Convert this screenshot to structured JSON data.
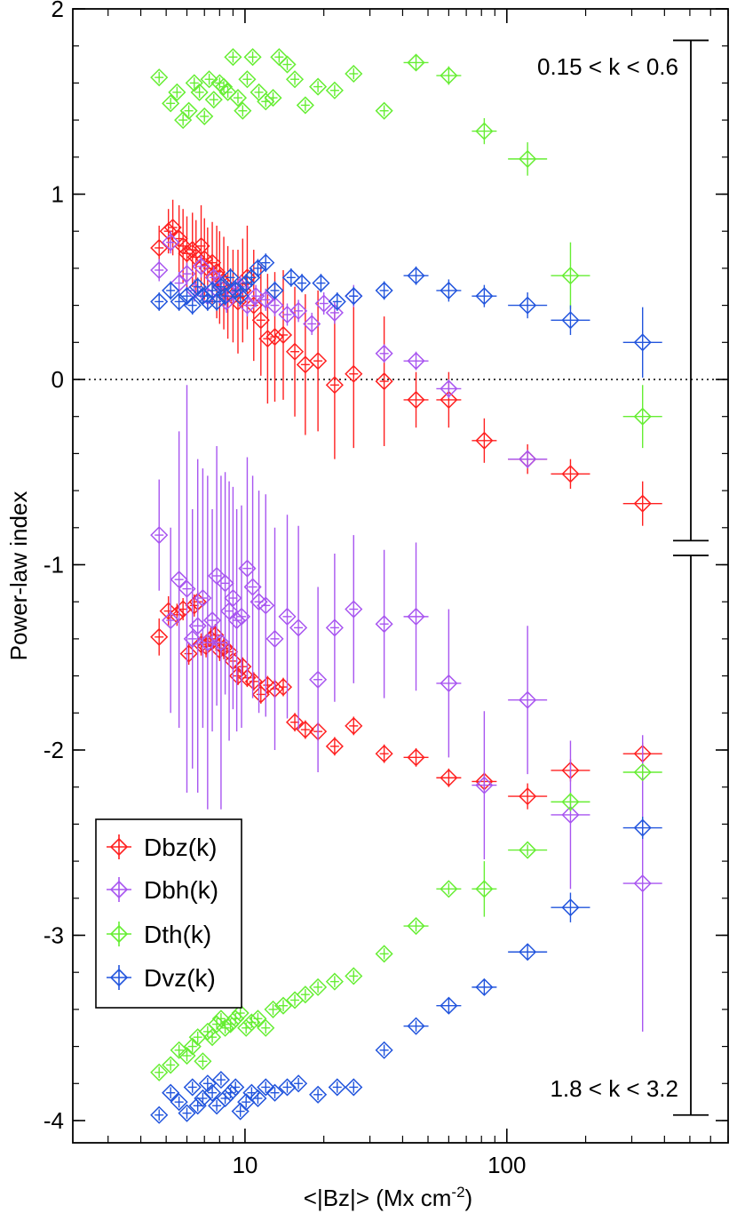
{
  "chart_data": {
    "type": "scatter",
    "title": "",
    "xlabel": "<|Bz|> (Mx cm",
    "xlabel_superscript": "-2",
    "xlabel_close": ")",
    "ylabel": "Power-law index",
    "xscale": "log",
    "xlim": [
      2.2,
      700
    ],
    "ylim": [
      -4.12,
      2.0
    ],
    "y_ticks": [
      {
        "value": 2,
        "label": "2"
      },
      {
        "value": 1,
        "label": "1"
      },
      {
        "value": 0,
        "label": "0"
      },
      {
        "value": -1,
        "label": "-1"
      },
      {
        "value": -2,
        "label": "-2"
      },
      {
        "value": -3,
        "label": "-3"
      },
      {
        "value": -4,
        "label": "-4"
      }
    ],
    "x_ticks": [
      {
        "value": 10,
        "label": "10"
      },
      {
        "value": 100,
        "label": "100"
      }
    ],
    "reference_line": {
      "y": 0,
      "style": "dotted"
    },
    "range_annotations": [
      {
        "label": "0.15 < k < 0.6",
        "y_top": 1.83,
        "y_bottom": -0.87,
        "position": "top-right"
      },
      {
        "label": "1.8 < k < 3.2",
        "y_top": -0.95,
        "y_bottom": -3.97,
        "position": "bottom-right"
      }
    ],
    "legend": {
      "position": "lower-left"
    },
    "series": [
      {
        "name": "Dbz(k)",
        "color": "#ff2020",
        "groups": [
          {
            "range": "low-k",
            "x": [
              4.7,
              5.1,
              5.3,
              5.6,
              5.8,
              6.0,
              6.3,
              6.5,
              6.8,
              7.0,
              7.2,
              7.5,
              7.8,
              8.0,
              8.3,
              8.6,
              9.0,
              9.4,
              9.8,
              10.2,
              10.8,
              11.5,
              12.2,
              13.0,
              14.0,
              15.5,
              17.0,
              19.0,
              22.0,
              26.0,
              34.0,
              45.0,
              60.0,
              82.0,
              120.0,
              175.0,
              330.0
            ],
            "y": [
              0.71,
              0.8,
              0.82,
              0.76,
              0.72,
              0.68,
              0.7,
              0.66,
              0.72,
              0.65,
              0.6,
              0.63,
              0.58,
              0.55,
              0.52,
              0.47,
              0.45,
              0.42,
              0.48,
              0.55,
              0.4,
              0.32,
              0.22,
              0.23,
              0.24,
              0.15,
              0.08,
              0.1,
              -0.03,
              0.03,
              -0.01,
              -0.11,
              -0.11,
              -0.33,
              -0.43,
              -0.51,
              -0.67
            ],
            "err": [
              0.12,
              0.12,
              0.15,
              0.18,
              0.2,
              0.2,
              0.2,
              0.2,
              0.22,
              0.22,
              0.22,
              0.22,
              0.25,
              0.25,
              0.25,
              0.25,
              0.25,
              0.28,
              0.28,
              0.28,
              0.3,
              0.3,
              0.35,
              0.35,
              0.35,
              0.35,
              0.38,
              0.38,
              0.4,
              0.4,
              0.35,
              0.15,
              0.15,
              0.12,
              0.08,
              0.08,
              0.12
            ]
          },
          {
            "range": "high-k",
            "x": [
              4.7,
              5.1,
              5.5,
              5.8,
              6.1,
              6.4,
              6.6,
              6.8,
              7.1,
              7.4,
              7.7,
              8.0,
              8.3,
              8.7,
              9.0,
              9.4,
              9.8,
              10.2,
              10.8,
              11.5,
              12.2,
              13.0,
              14.0,
              15.5,
              17.0,
              19.0,
              22.0,
              26.0,
              34.0,
              45.0,
              60.0,
              82.0,
              120.0,
              175.0,
              330.0
            ],
            "y": [
              -1.39,
              -1.25,
              -1.27,
              -1.24,
              -1.48,
              -1.22,
              -1.2,
              -1.43,
              -1.44,
              -1.4,
              -1.38,
              -1.46,
              -1.45,
              -1.47,
              -1.52,
              -1.6,
              -1.55,
              -1.61,
              -1.63,
              -1.7,
              -1.65,
              -1.67,
              -1.66,
              -1.85,
              -1.89,
              -1.9,
              -1.98,
              -1.87,
              -2.02,
              -2.04,
              -2.15,
              -2.17,
              -2.25,
              -2.11,
              -2.02
            ],
            "err": [
              0.1,
              0.08,
              0.06,
              0.06,
              0.06,
              0.06,
              0.06,
              0.06,
              0.06,
              0.06,
              0.06,
              0.06,
              0.06,
              0.06,
              0.06,
              0.05,
              0.05,
              0.05,
              0.05,
              0.05,
              0.05,
              0.05,
              0.05,
              0.05,
              0.05,
              0.05,
              0.05,
              0.05,
              0.05,
              0.05,
              0.05,
              0.05,
              0.07,
              0.06,
              0.06
            ]
          }
        ]
      },
      {
        "name": "Dbh(k)",
        "color": "#a855f0",
        "groups": [
          {
            "range": "low-k",
            "x": [
              4.7,
              5.2,
              5.6,
              6.0,
              6.4,
              6.8,
              7.2,
              7.6,
              8.0,
              8.5,
              9.0,
              9.6,
              10.2,
              11.0,
              12.0,
              13.0,
              14.5,
              16.0,
              18.0,
              20.0,
              22.0,
              26.0,
              34.0,
              45.0,
              60.0,
              120.0
            ],
            "y": [
              0.59,
              0.74,
              0.52,
              0.57,
              0.48,
              0.61,
              0.45,
              0.55,
              0.52,
              0.42,
              0.47,
              0.5,
              0.4,
              0.45,
              0.43,
              0.4,
              0.35,
              0.37,
              0.3,
              0.41,
              0.36,
              0.45,
              0.14,
              0.1,
              -0.05,
              -0.43
            ],
            "err": [
              0.06,
              0.06,
              0.06,
              0.06,
              0.06,
              0.06,
              0.06,
              0.06,
              0.06,
              0.06,
              0.06,
              0.06,
              0.06,
              0.06,
              0.06,
              0.06,
              0.06,
              0.06,
              0.06,
              0.06,
              0.06,
              0.06,
              0.05,
              0.05,
              0.05,
              0.05
            ]
          },
          {
            "range": "high-k",
            "x": [
              4.7,
              5.2,
              5.6,
              6.0,
              6.3,
              6.6,
              6.9,
              7.2,
              7.5,
              7.8,
              8.1,
              8.4,
              8.7,
              9.0,
              9.3,
              9.7,
              10.2,
              10.7,
              11.3,
              12.0,
              13.0,
              14.5,
              16.0,
              19.0,
              22.0,
              26.0,
              34.0,
              45.0,
              60.0,
              82.0,
              120.0,
              175.0,
              330.0
            ],
            "y": [
              -0.84,
              -1.3,
              -1.08,
              -1.13,
              -1.4,
              -1.33,
              -1.18,
              -1.42,
              -1.3,
              -1.06,
              -1.42,
              -1.1,
              -1.25,
              -1.18,
              -1.3,
              -1.28,
              -1.02,
              -1.12,
              -1.2,
              -1.22,
              -1.4,
              -1.28,
              -1.34,
              -1.62,
              -1.34,
              -1.24,
              -1.32,
              -1.28,
              -1.64,
              -2.19,
              -1.73,
              -2.35,
              -2.72
            ],
            "err": [
              0.3,
              0.5,
              0.8,
              1.1,
              0.7,
              0.9,
              0.7,
              0.9,
              0.6,
              0.7,
              0.9,
              0.6,
              0.7,
              0.6,
              0.6,
              0.6,
              0.6,
              0.6,
              0.6,
              0.6,
              0.6,
              0.55,
              0.55,
              0.5,
              0.4,
              0.4,
              0.4,
              0.4,
              0.4,
              0.4,
              0.4,
              0.4,
              0.8
            ]
          }
        ]
      },
      {
        "name": "Dth(k)",
        "color": "#66ee33",
        "groups": [
          {
            "range": "low-k",
            "x": [
              4.7,
              5.2,
              5.5,
              5.8,
              6.1,
              6.4,
              6.7,
              7.0,
              7.3,
              7.6,
              8.0,
              8.3,
              8.6,
              9.0,
              9.4,
              9.8,
              10.2,
              10.7,
              11.3,
              12.0,
              12.8,
              13.5,
              14.5,
              15.5,
              17.0,
              19.0,
              22.0,
              26.0,
              34.0,
              45.0,
              60.0,
              82.0,
              120.0,
              175.0,
              330.0
            ],
            "y": [
              1.63,
              1.49,
              1.55,
              1.4,
              1.45,
              1.6,
              1.55,
              1.42,
              1.62,
              1.51,
              1.6,
              1.58,
              1.55,
              1.74,
              1.52,
              1.45,
              1.62,
              1.74,
              1.55,
              1.5,
              1.52,
              1.74,
              1.7,
              1.62,
              1.48,
              1.58,
              1.56,
              1.65,
              1.45,
              1.71,
              1.64,
              1.34,
              1.19,
              0.56,
              -0.2
            ],
            "err": [
              0.03,
              0.03,
              0.03,
              0.03,
              0.03,
              0.03,
              0.03,
              0.03,
              0.03,
              0.03,
              0.03,
              0.03,
              0.03,
              0.03,
              0.03,
              0.03,
              0.03,
              0.03,
              0.03,
              0.03,
              0.03,
              0.03,
              0.03,
              0.03,
              0.03,
              0.03,
              0.03,
              0.03,
              0.03,
              0.04,
              0.05,
              0.07,
              0.09,
              0.18,
              0.17
            ]
          },
          {
            "range": "high-k",
            "x": [
              4.7,
              5.2,
              5.6,
              6.0,
              6.3,
              6.6,
              6.9,
              7.2,
              7.5,
              7.8,
              8.1,
              8.4,
              8.8,
              9.2,
              9.6,
              10.1,
              10.6,
              11.2,
              12.0,
              12.8,
              14.0,
              15.5,
              17.0,
              19.0,
              22.0,
              26.0,
              34.0,
              45.0,
              60.0,
              82.0,
              120.0,
              175.0,
              330.0
            ],
            "y": [
              -3.74,
              -3.7,
              -3.62,
              -3.65,
              -3.6,
              -3.55,
              -3.68,
              -3.52,
              -3.55,
              -3.48,
              -3.45,
              -3.5,
              -3.48,
              -3.45,
              -3.42,
              -3.5,
              -3.47,
              -3.45,
              -3.5,
              -3.4,
              -3.38,
              -3.35,
              -3.32,
              -3.28,
              -3.25,
              -3.22,
              -3.1,
              -2.95,
              -2.75,
              -2.75,
              -2.54,
              -2.28,
              -2.12
            ],
            "err": [
              0.03,
              0.03,
              0.03,
              0.03,
              0.03,
              0.03,
              0.03,
              0.03,
              0.03,
              0.03,
              0.03,
              0.03,
              0.03,
              0.03,
              0.03,
              0.03,
              0.03,
              0.03,
              0.03,
              0.03,
              0.03,
              0.03,
              0.03,
              0.03,
              0.03,
              0.03,
              0.03,
              0.03,
              0.03,
              0.15,
              0.03,
              0.05,
              0.03
            ]
          }
        ]
      },
      {
        "name": "Dvz(k)",
        "color": "#2255dd",
        "groups": [
          {
            "range": "low-k",
            "x": [
              4.7,
              5.2,
              5.6,
              6.0,
              6.3,
              6.6,
              6.9,
              7.2,
              7.5,
              7.8,
              8.1,
              8.4,
              8.8,
              9.2,
              9.6,
              10.1,
              10.6,
              11.2,
              12.0,
              13.0,
              15.0,
              16.5,
              19.5,
              22.5,
              26.0,
              34.0,
              45.0,
              60.0,
              82.0,
              120.0,
              175.0,
              330.0
            ],
            "y": [
              0.42,
              0.48,
              0.42,
              0.45,
              0.4,
              0.5,
              0.45,
              0.42,
              0.48,
              0.42,
              0.5,
              0.45,
              0.55,
              0.48,
              0.45,
              0.52,
              0.55,
              0.6,
              0.63,
              0.48,
              0.55,
              0.52,
              0.52,
              0.42,
              0.45,
              0.48,
              0.56,
              0.48,
              0.45,
              0.4,
              0.32,
              0.2
            ],
            "err": [
              0.05,
              0.05,
              0.05,
              0.05,
              0.05,
              0.05,
              0.05,
              0.05,
              0.05,
              0.05,
              0.05,
              0.05,
              0.05,
              0.05,
              0.05,
              0.05,
              0.05,
              0.05,
              0.05,
              0.05,
              0.05,
              0.05,
              0.05,
              0.05,
              0.05,
              0.05,
              0.05,
              0.06,
              0.06,
              0.07,
              0.08,
              0.19
            ]
          },
          {
            "range": "high-k",
            "x": [
              4.7,
              5.2,
              5.6,
              6.0,
              6.3,
              6.6,
              6.9,
              7.2,
              7.5,
              7.8,
              8.1,
              8.4,
              8.8,
              9.2,
              9.6,
              10.1,
              10.6,
              11.2,
              12.0,
              13.0,
              14.5,
              16.0,
              19.0,
              22.5,
              26.0,
              34.0,
              45.0,
              60.0,
              82.0,
              120.0,
              175.0,
              330.0
            ],
            "y": [
              -3.97,
              -3.85,
              -3.9,
              -3.96,
              -3.82,
              -3.92,
              -3.88,
              -3.8,
              -3.85,
              -3.92,
              -3.78,
              -3.88,
              -3.85,
              -3.82,
              -3.95,
              -3.9,
              -3.85,
              -3.88,
              -3.82,
              -3.85,
              -3.82,
              -3.8,
              -3.86,
              -3.82,
              -3.82,
              -3.62,
              -3.49,
              -3.38,
              -3.28,
              -3.09,
              -2.85,
              -2.42
            ],
            "err": [
              0.03,
              0.03,
              0.03,
              0.03,
              0.03,
              0.03,
              0.03,
              0.03,
              0.03,
              0.03,
              0.03,
              0.03,
              0.03,
              0.03,
              0.03,
              0.03,
              0.03,
              0.03,
              0.03,
              0.03,
              0.03,
              0.03,
              0.03,
              0.03,
              0.03,
              0.03,
              0.03,
              0.04,
              0.04,
              0.04,
              0.08,
              0.06
            ]
          }
        ]
      }
    ]
  }
}
